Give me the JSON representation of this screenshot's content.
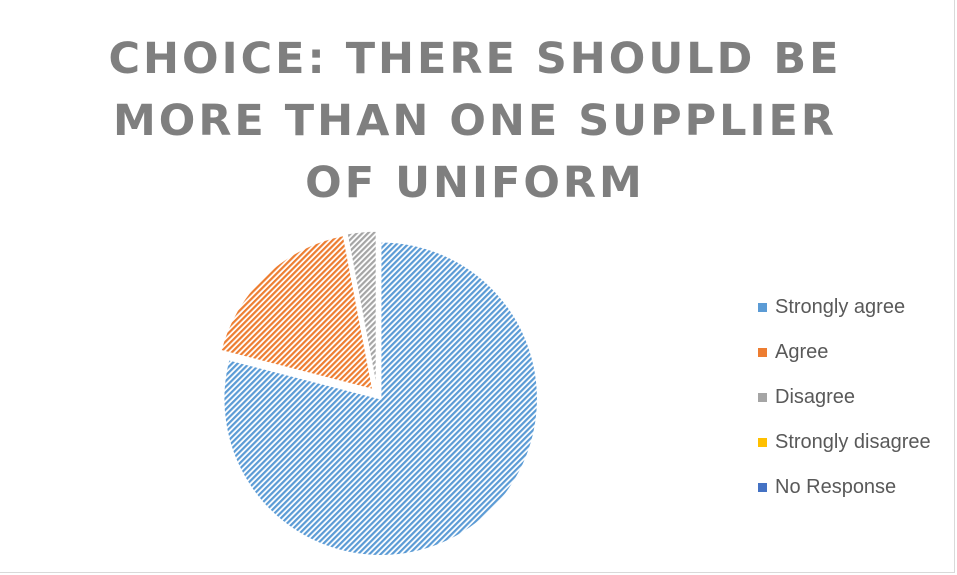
{
  "chart_data": {
    "type": "pie",
    "title": "CHOICE:  THERE SHOULD BE MORE THAN ONE SUPPLIER OF UNIFORM",
    "legend_position": "right",
    "slices": [
      {
        "label": "Strongly agree",
        "value": 79,
        "color": "#5b9bd5"
      },
      {
        "label": "Agree",
        "value": 18,
        "color": "#ed7d31"
      },
      {
        "label": "Disagree",
        "value": 3,
        "color": "#a5a5a5"
      },
      {
        "label": "Strongly disagree",
        "value": 0,
        "color": "#ffc000"
      },
      {
        "label": "No Response",
        "value": 0,
        "color": "#4472c4"
      }
    ]
  }
}
